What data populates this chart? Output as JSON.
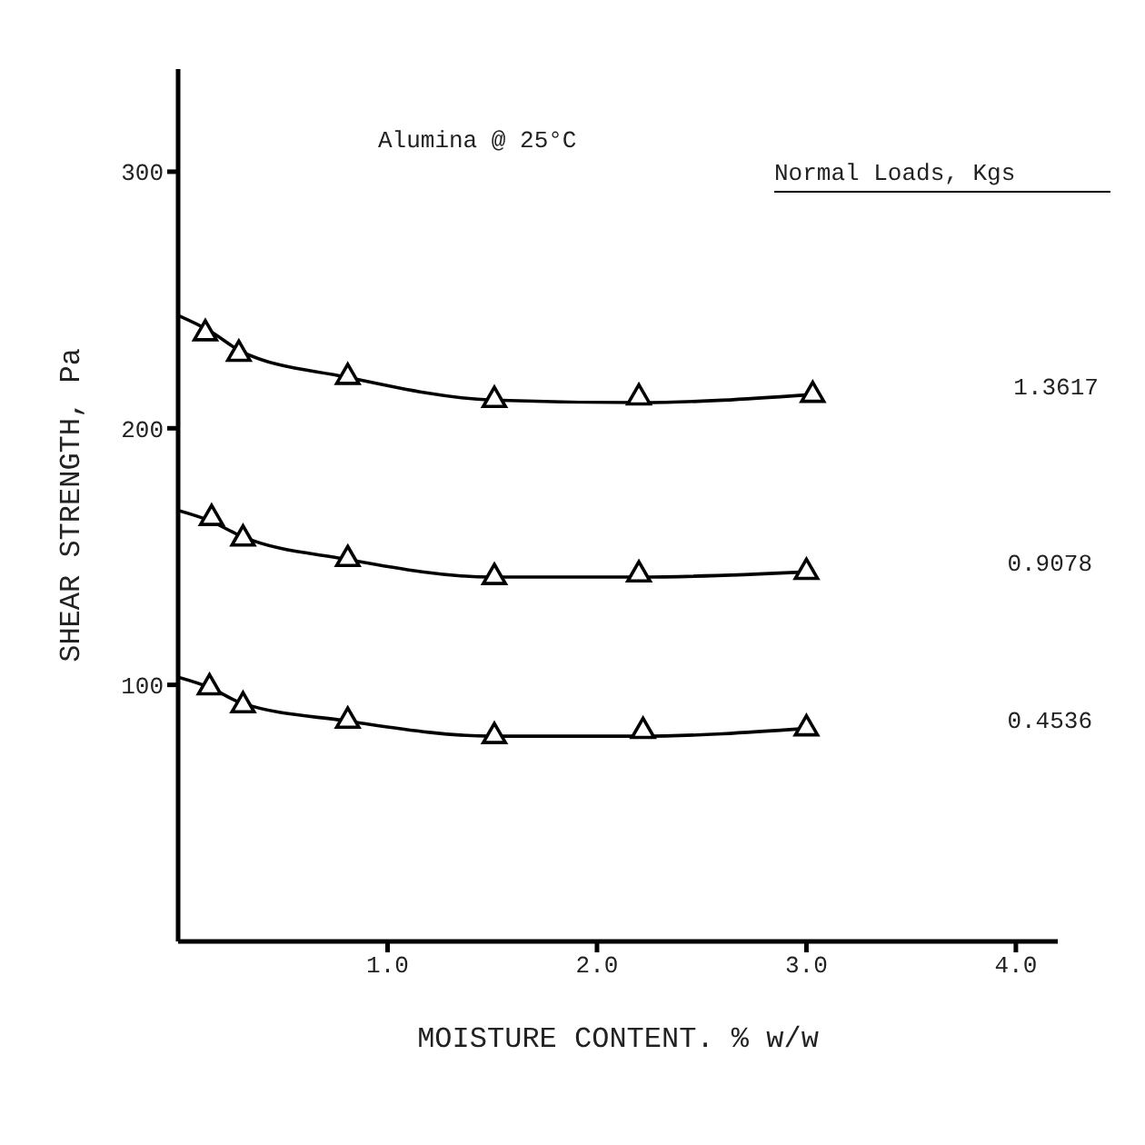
{
  "chart_data": {
    "type": "scatter",
    "xlabel": "MOISTURE  CONTENT. % w/w",
    "ylabel": "SHEAR STRENGTH, Pa",
    "legend_title": "Normal Loads, Kgs",
    "annotations": [
      "Alumina @ 25°C"
    ],
    "xlim": [
      0,
      4.2
    ],
    "xticks": [
      {
        "value": 1,
        "label": "1.0"
      },
      {
        "value": 2,
        "label": "2.0"
      },
      {
        "value": 3,
        "label": "3.0"
      },
      {
        "value": 4,
        "label": "4.0"
      }
    ],
    "ylim": [
      0,
      340
    ],
    "yticks": [
      100,
      200,
      300
    ],
    "grid": false,
    "legend": false,
    "marker": "triangle",
    "series": [
      {
        "name": "1.3617",
        "color": "#000000",
        "x": [
          0.13,
          0.29,
          0.81,
          1.51,
          2.2,
          3.03
        ],
        "values": [
          237,
          229,
          220,
          211,
          212,
          213
        ]
      },
      {
        "name": "0.9078",
        "color": "#000000",
        "x": [
          0.16,
          0.31,
          0.81,
          1.51,
          2.2,
          3.0
        ],
        "values": [
          165,
          157,
          149,
          142,
          143,
          144
        ]
      },
      {
        "name": "0.4536",
        "color": "#000000",
        "x": [
          0.15,
          0.31,
          0.81,
          1.51,
          2.22,
          3.0
        ],
        "values": [
          99,
          92,
          86,
          80,
          82,
          83
        ]
      },
      {
        "type": "line",
        "marker": "none",
        "color": "#000000",
        "x": [
          0,
          0.15,
          0.3,
          0.8,
          1.5,
          2.2,
          3.0
        ],
        "values": [
          244,
          238,
          230,
          220,
          211,
          210,
          213
        ]
      },
      {
        "type": "line",
        "marker": "none",
        "color": "#000000",
        "x": [
          0,
          0.15,
          0.3,
          0.8,
          1.5,
          2.2,
          3.0
        ],
        "values": [
          168,
          164,
          158,
          149,
          142,
          142,
          144
        ]
      },
      {
        "type": "line",
        "marker": "none",
        "color": "#000000",
        "x": [
          0,
          0.15,
          0.3,
          0.8,
          1.5,
          2.2,
          3.0
        ],
        "values": [
          103,
          99,
          93,
          86,
          80,
          80,
          83
        ]
      }
    ]
  }
}
